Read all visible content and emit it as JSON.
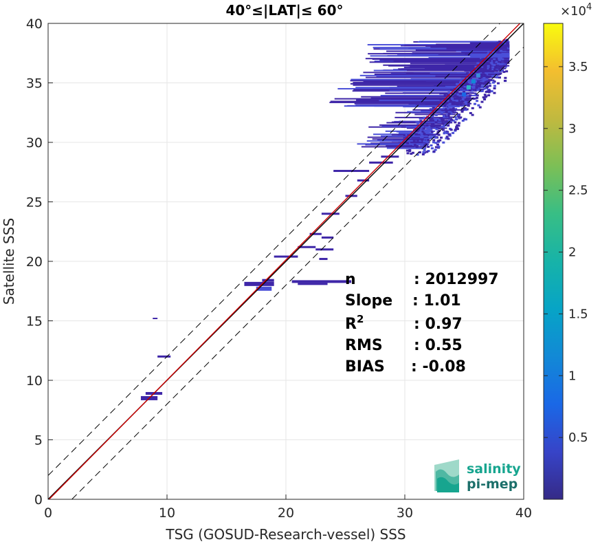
{
  "chart_data": {
    "type": "heatmap",
    "title": "40°≤|LAT|≤ 60°",
    "xlabel": "TSG (GOSUD-Research-vessel) SSS",
    "ylabel": "Satellite SSS",
    "xlim": [
      0,
      40
    ],
    "ylim": [
      0,
      40
    ],
    "xticks": [
      "0",
      "10",
      "20",
      "30",
      "40"
    ],
    "yticks": [
      "0",
      "5",
      "10",
      "15",
      "20",
      "25",
      "30",
      "35",
      "40"
    ],
    "grid": true,
    "colorbar": {
      "range": [
        0,
        38500
      ],
      "multiplier_label": "×10",
      "multiplier_exponent": "4",
      "ticks": [
        {
          "label": "0.5",
          "value": 5000
        },
        {
          "label": "1",
          "value": 10000
        },
        {
          "label": "1.5",
          "value": 15000
        },
        {
          "label": "2",
          "value": 20000
        },
        {
          "label": "2.5",
          "value": 25000
        },
        {
          "label": "3",
          "value": 30000
        },
        {
          "label": "3.5",
          "value": 35000
        }
      ],
      "colormap": "parula"
    },
    "reference_lines": [
      {
        "kind": "identity (1:1)",
        "color": "#000000",
        "style": "solid"
      },
      {
        "kind": "regression fit",
        "color": "#cc0000",
        "style": "solid",
        "slope": 1.01,
        "intercept": -0.08
      },
      {
        "kind": "+2 psu offset",
        "color": "#000000",
        "style": "dashed",
        "offset": 2
      },
      {
        "kind": "-2 psu offset",
        "color": "#000000",
        "style": "dashed",
        "offset": -2
      }
    ],
    "density_regions": [
      {
        "x": [
          30,
          37
        ],
        "y": [
          29.5,
          37
        ],
        "level": "high"
      },
      {
        "x": [
          32.5,
          38.5
        ],
        "y": [
          31.5,
          38.5
        ],
        "level": "highest"
      },
      {
        "x": [
          17.5,
          19
        ],
        "y": [
          17.5,
          18.5
        ],
        "level": "medium"
      },
      {
        "x": [
          8,
          9.5
        ],
        "y": [
          8,
          9
        ],
        "level": "low"
      }
    ],
    "stats": [
      {
        "label": "n",
        "sup": "",
        "value": ": 2012997"
      },
      {
        "label": "Slope",
        "sup": "",
        "value": ": 1.01"
      },
      {
        "label": "R",
        "sup": "2",
        "value": ": 0.97"
      },
      {
        "label": "RMS",
        "sup": "",
        "value": ": 0.55"
      },
      {
        "label": "BIAS",
        "sup": "",
        "value": ": -0.08"
      }
    ]
  },
  "logo": {
    "line1": "salinity",
    "line2": "pi-mep"
  },
  "colors": {
    "dark_blue": "#3e26a8",
    "mid_blue": "#4a4fd8",
    "cyan": "#2fb7c6",
    "teal": "#2aa198",
    "logo_teal": "#17a58f",
    "fit_red": "#cc0000"
  }
}
